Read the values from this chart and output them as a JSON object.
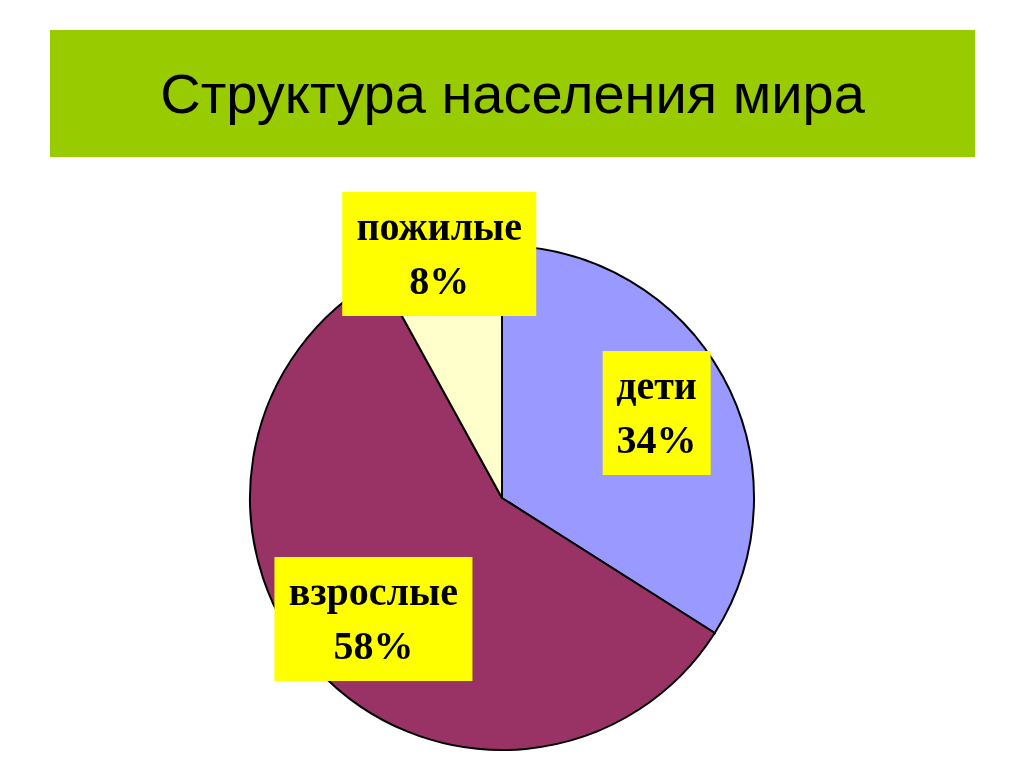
{
  "chart_data": {
    "type": "pie",
    "title": "Структура населения мира",
    "categories": [
      "дети",
      "взрослые",
      "пожилые"
    ],
    "values": [
      34,
      58,
      8
    ],
    "value_labels": [
      "34%",
      "58%",
      "8%"
    ],
    "colors": [
      "#9999ff",
      "#993366",
      "#ffffcc"
    ]
  }
}
